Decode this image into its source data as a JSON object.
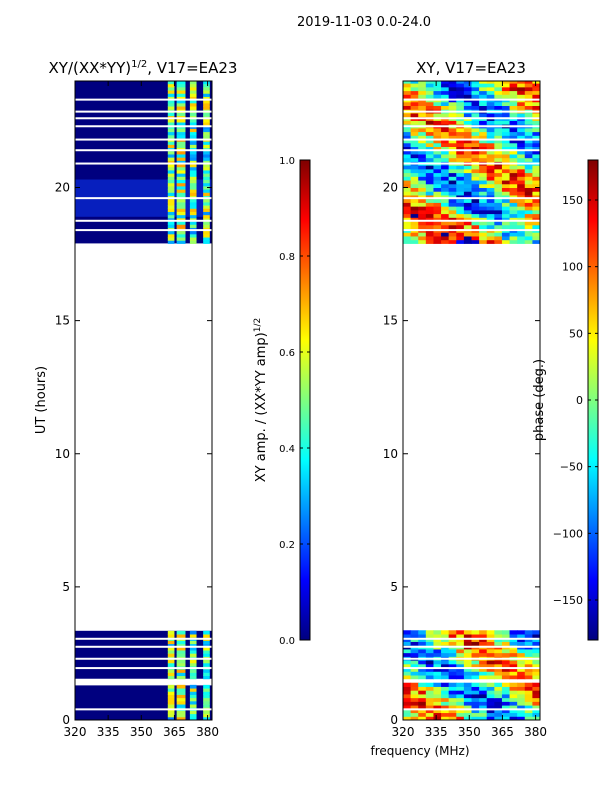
{
  "figure": {
    "suptitle": "2019-11-03 0.0-24.0",
    "xlabel": "frequency (MHz)"
  },
  "colors": {
    "jet": [
      "#00007f",
      "#0000ff",
      "#007fff",
      "#00ffff",
      "#7fff7f",
      "#ffff00",
      "#ff7f00",
      "#ff0000",
      "#7f0000"
    ],
    "background": "#00007f",
    "axis": "#000000"
  },
  "chart_data": [
    {
      "type": "heatmap",
      "name": "left",
      "title_main": "XY/(XX*YY)",
      "title_exp": "1/2",
      "title_tail": ", V17=EA23",
      "xlabel": "",
      "ylabel": "UT (hours)",
      "xlim": [
        320,
        382
      ],
      "ylim": [
        0,
        24
      ],
      "xticks": [
        320,
        335,
        350,
        365,
        380
      ],
      "yticks": [
        0,
        5,
        10,
        15,
        20
      ],
      "colorbar": {
        "label_main": "XY amp. / (XX*YY amp)",
        "label_exp": "1/2",
        "range": [
          0.0,
          1.0
        ],
        "ticks": [
          "0.0",
          "0.2",
          "0.4",
          "0.6",
          "0.8",
          "1.0"
        ],
        "tick_values": [
          0.0,
          0.2,
          0.4,
          0.6,
          0.8,
          1.0
        ]
      },
      "data_ranges_hours": [
        [
          0,
          1.3
        ],
        [
          1.55,
          3.35
        ],
        [
          17.9,
          24
        ]
      ],
      "gap_lines_hours": [
        0.4,
        1.95,
        2.3,
        2.75,
        3.05,
        18.4,
        18.75,
        19.6,
        20.9,
        21.4,
        21.8,
        22.3,
        22.6,
        22.85,
        23.3
      ],
      "bright_channels_mhz": [
        [
          362,
          365
        ],
        [
          366,
          370
        ],
        [
          372,
          375
        ],
        [
          378,
          381
        ]
      ]
    },
    {
      "type": "heatmap",
      "name": "right",
      "title_main": "XY, V17=EA23",
      "xlabel": "",
      "ylabel": "",
      "xlim": [
        320,
        382
      ],
      "ylim": [
        0,
        24
      ],
      "xticks": [
        320,
        335,
        350,
        365,
        380
      ],
      "yticks": [
        0,
        5,
        10,
        15,
        20
      ],
      "colorbar": {
        "label_main": "phase (deg.)",
        "range": [
          -180,
          180
        ],
        "ticks": [
          "−150",
          "−100",
          "−50",
          "0",
          "50",
          "100",
          "150"
        ],
        "tick_values": [
          -150,
          -100,
          -50,
          0,
          50,
          100,
          150
        ]
      },
      "data_ranges_hours": [
        [
          0,
          1.3
        ],
        [
          1.55,
          3.35
        ],
        [
          17.9,
          24
        ]
      ],
      "gap_lines_hours": [
        0.4,
        1.95,
        2.3,
        2.75,
        3.05,
        18.4,
        18.75,
        19.6,
        20.9,
        21.4,
        21.8,
        22.3,
        22.6,
        22.85,
        23.3
      ]
    }
  ]
}
